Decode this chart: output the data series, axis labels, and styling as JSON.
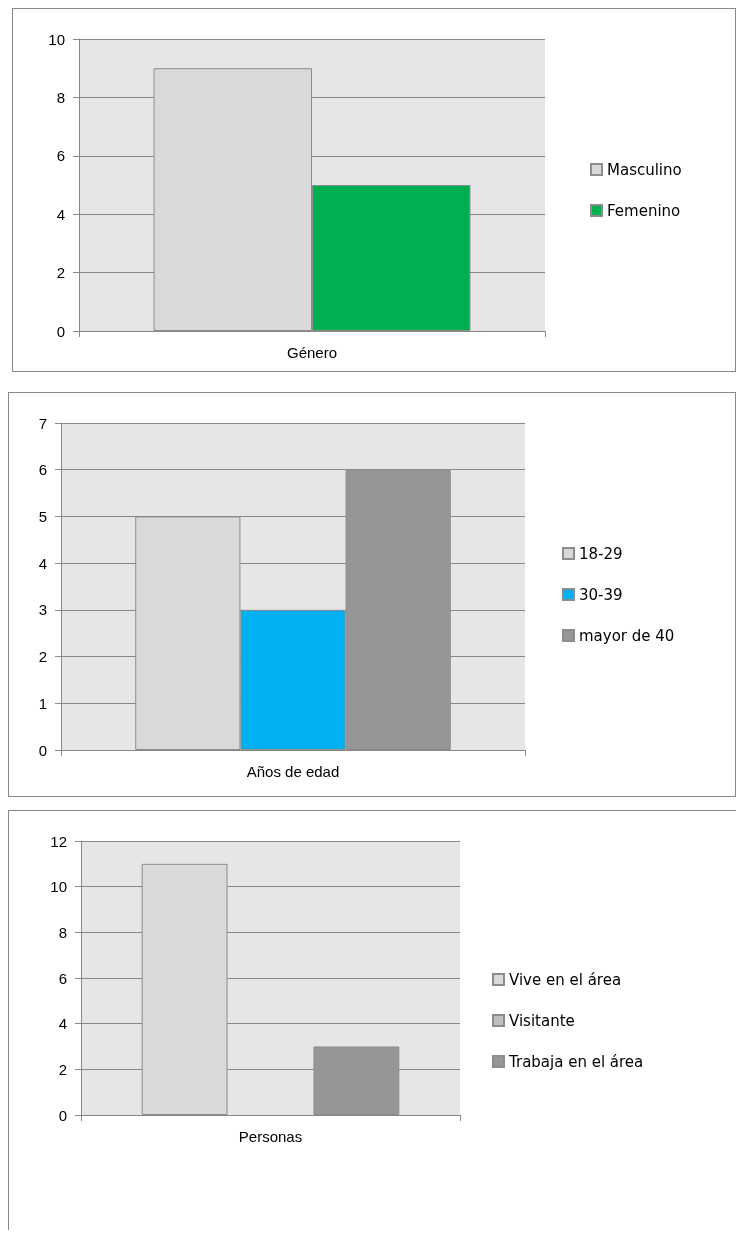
{
  "chart_data": [
    {
      "type": "bar",
      "categories": [
        "Género"
      ],
      "series": [
        {
          "name": "Masculino",
          "color": "#d9d9d9",
          "values": [
            9
          ]
        },
        {
          "name": "Femenino",
          "color": "#00b050",
          "values": [
            5
          ]
        }
      ],
      "ylim": [
        0,
        10
      ],
      "yticks": [
        0,
        2,
        4,
        6,
        8,
        10
      ],
      "grid": "y",
      "legend": "right"
    },
    {
      "type": "bar",
      "categories": [
        "Años de edad"
      ],
      "series": [
        {
          "name": "18-29",
          "color": "#d9d9d9",
          "values": [
            5
          ]
        },
        {
          "name": "30-39",
          "color": "#00b0f0",
          "values": [
            3
          ]
        },
        {
          "name": "mayor de 40",
          "color": "#969696",
          "values": [
            6
          ]
        }
      ],
      "ylim": [
        0,
        7
      ],
      "yticks": [
        0,
        1,
        2,
        3,
        4,
        5,
        6,
        7
      ],
      "grid": "y",
      "legend": "right"
    },
    {
      "type": "bar",
      "categories": [
        "Personas"
      ],
      "series": [
        {
          "name": "Vive en el área",
          "color": "#d9d9d9",
          "values": [
            11
          ]
        },
        {
          "name": "Visitante",
          "color": "#bfbfbf",
          "values": [
            0
          ]
        },
        {
          "name": "Trabaja en el área",
          "color": "#969696",
          "values": [
            3
          ]
        }
      ],
      "ylim": [
        0,
        12
      ],
      "yticks": [
        0,
        2,
        4,
        6,
        8,
        10,
        12
      ],
      "grid": "y",
      "legend": "right"
    }
  ]
}
